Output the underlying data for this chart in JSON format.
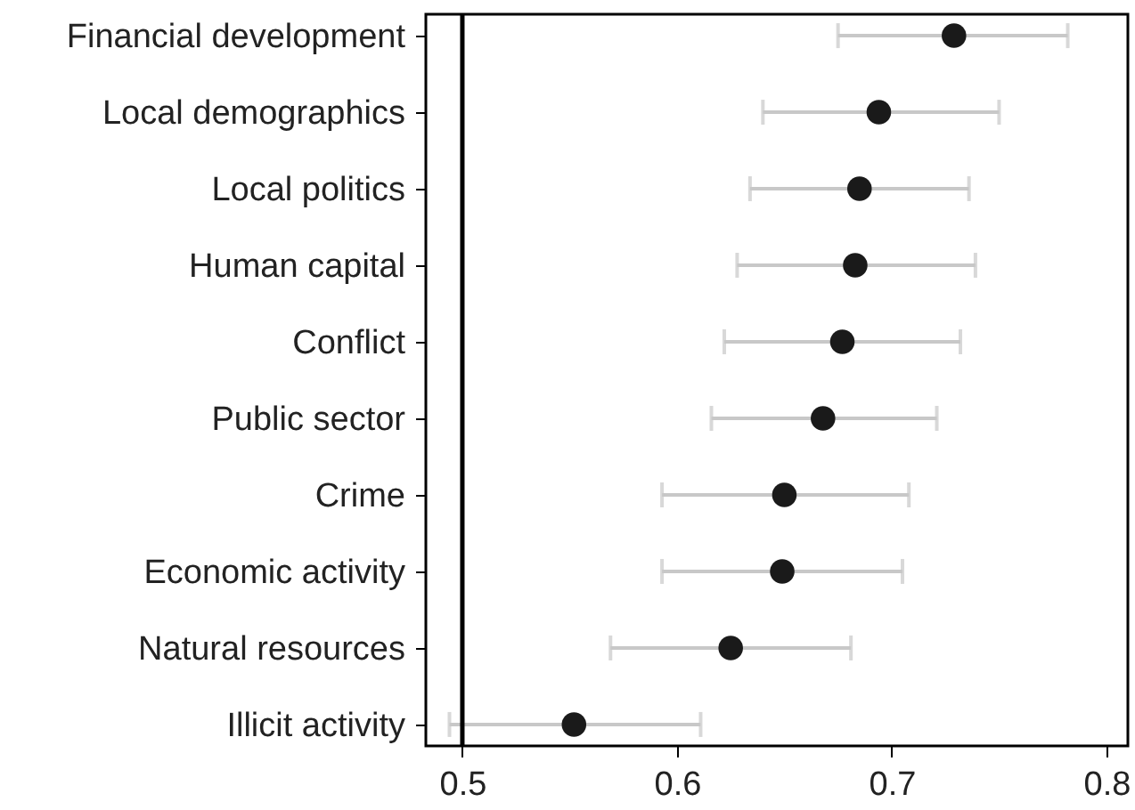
{
  "chart_data": {
    "type": "scatter",
    "orientation": "horizontal",
    "categories": [
      "Financial development",
      "Local demographics",
      "Local politics",
      "Human capital",
      "Conflict",
      "Public sector",
      "Crime",
      "Economic activity",
      "Natural resources",
      "Illicit activity"
    ],
    "values": [
      0.729,
      0.694,
      0.685,
      0.683,
      0.677,
      0.668,
      0.65,
      0.649,
      0.625,
      0.552
    ],
    "errors": [
      [
        0.675,
        0.782
      ],
      [
        0.64,
        0.75
      ],
      [
        0.634,
        0.736
      ],
      [
        0.628,
        0.739
      ],
      [
        0.622,
        0.732
      ],
      [
        0.616,
        0.721
      ],
      [
        0.593,
        0.708
      ],
      [
        0.593,
        0.705
      ],
      [
        0.569,
        0.681
      ],
      [
        0.494,
        0.611
      ]
    ],
    "color": "#1a1a1a",
    "marker": "circle",
    "grid": false,
    "xlim": [
      0.483,
      0.81
    ],
    "xticks": [
      0.5,
      0.6,
      0.7,
      0.8
    ],
    "ref_lines": [
      {
        "axis": "x",
        "value": 0.5,
        "color": "#000000"
      }
    ]
  }
}
